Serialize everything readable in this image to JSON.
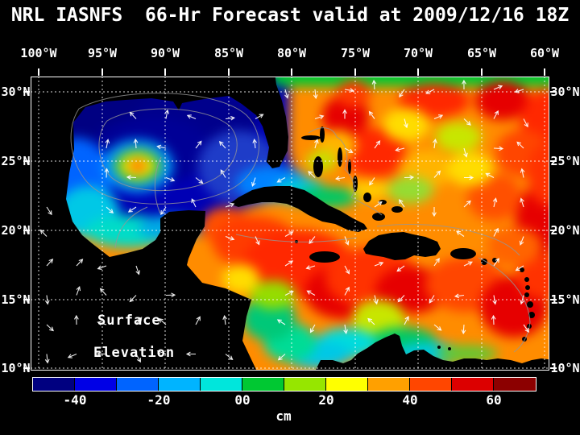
{
  "title": "NRL IASNFS  66-Hr Forecast valid at 2009/12/16 18Z",
  "map": {
    "lon_labels": [
      "100°W",
      "95°W",
      "90°W",
      "85°W",
      "80°W",
      "75°W",
      "70°W",
      "65°W",
      "60°W"
    ],
    "lat_labels": [
      "30°N",
      "25°N",
      "20°N",
      "15°N",
      "10°N"
    ],
    "overlay_label": {
      "line1": "Surface",
      "line2": "Elevation"
    }
  },
  "colorbar": {
    "unit": "cm",
    "tick_labels": [
      "-40",
      "-20",
      "00",
      "20",
      "40",
      "60"
    ],
    "range_cm": [
      -50,
      70
    ],
    "colors": [
      "#000080",
      "#0000e6",
      "#0064ff",
      "#00b4ff",
      "#00e6dc",
      "#00c832",
      "#96e600",
      "#ffff00",
      "#ffa000",
      "#ff4600",
      "#dc0000",
      "#8c0000"
    ]
  },
  "chart_data": {
    "type": "heatmap",
    "title": "NRL IASNFS 66-Hr Forecast valid at 2009/12/16 18Z",
    "field": "Surface Elevation",
    "unit": "cm",
    "model": "NRL IASNFS",
    "forecast_hour": 66,
    "valid_time": "2009/12/16 18Z",
    "x_axis": {
      "label": "Longitude",
      "ticks_deg_w": [
        100,
        95,
        90,
        85,
        80,
        75,
        70,
        65,
        60
      ]
    },
    "y_axis": {
      "label": "Latitude",
      "ticks_deg_n": [
        30,
        25,
        20,
        15,
        10
      ]
    },
    "colorbar": {
      "ticks_cm": [
        -40,
        -20,
        0,
        20,
        40,
        60
      ],
      "range_cm": [
        -50,
        70
      ]
    },
    "approx_field_values_cm": [
      {
        "region": "central Gulf of Mexico",
        "value": -40
      },
      {
        "region": "warm-core eddy near 25N 92.5W",
        "value": 10
      },
      {
        "region": "western Gulf shelf",
        "value": -15
      },
      {
        "region": "Florida Straits",
        "value": -10
      },
      {
        "region": "NW Caribbean / Yucatan Channel",
        "value": 40
      },
      {
        "region": "central Caribbean 15-18N",
        "value": 35
      },
      {
        "region": "SW Caribbean near Panama/Colombia coast",
        "value": 0
      },
      {
        "region": "Atlantic north of Greater Antilles",
        "value": 30
      },
      {
        "region": "Atlantic band 29-31N",
        "value": 5
      }
    ],
    "overlays": [
      "surface current vectors (white arrows)",
      "bathymetry contours (gray)",
      "5-degree lat/lon dotted grid"
    ]
  }
}
